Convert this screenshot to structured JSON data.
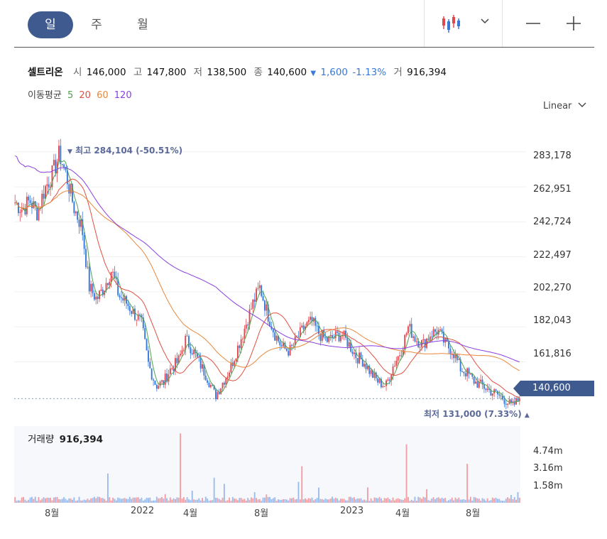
{
  "tabs": {
    "day": "일",
    "week": "주",
    "month": "월"
  },
  "stock": {
    "name": "셀트리온",
    "open_label": "시",
    "open": "146,000",
    "high_label": "고",
    "high": "147,800",
    "low_label": "저",
    "low": "138,500",
    "close_label": "종",
    "close": "140,600",
    "change": "1,600",
    "change_pct": "-1.13%",
    "volume_label": "거",
    "volume": "916,394"
  },
  "ma": {
    "label": "이동평균",
    "p5": "5",
    "p20": "20",
    "p60": "60",
    "p120": "120"
  },
  "scale": {
    "label": "Linear"
  },
  "colors": {
    "accent": "#3f5a8e",
    "up": "#e0484e",
    "down": "#3a78d8",
    "ma5": "#4fa24f",
    "ma20": "#e05040",
    "ma60": "#e8883a",
    "ma120": "#8a3fe0"
  },
  "annotations": {
    "high": "최고 284,104 (-50.51%)",
    "low": "최저 131,000 (7.33%)"
  },
  "current_price": "140,600",
  "volume_title": "거래량",
  "volume_value": "916,394",
  "chart_data": {
    "type": "candlestick",
    "title": "",
    "y_ticks": [
      "283,178",
      "262,951",
      "242,724",
      "222,497",
      "202,270",
      "182,043",
      "161,816"
    ],
    "ylim": [
      137000,
      295000
    ],
    "x_ticks": [
      "8월",
      "2022",
      "4월",
      "8월",
      "2023",
      "4월",
      "8월"
    ],
    "high": 284104,
    "low": 131000,
    "last": 140600,
    "close_series": [
      254000,
      250000,
      255000,
      248000,
      262000,
      270000,
      282000,
      268000,
      250000,
      240000,
      205000,
      198000,
      205000,
      215000,
      200000,
      196000,
      190000,
      185000,
      160000,
      148000,
      150000,
      158000,
      162000,
      175000,
      168000,
      160000,
      152000,
      142000,
      150000,
      158000,
      170000,
      182000,
      195000,
      205000,
      190000,
      178000,
      170000,
      168000,
      175000,
      182000,
      185000,
      178000,
      174000,
      176000,
      178000,
      172000,
      165000,
      162000,
      155000,
      150000,
      148000,
      160000,
      168000,
      182000,
      175000,
      172000,
      178000,
      180000,
      172000,
      168000,
      158000,
      155000,
      150000,
      148000,
      145000,
      143000,
      140000,
      136000,
      140600
    ],
    "volume_ticks": [
      "4.74m",
      "3.16m",
      "1.58m"
    ],
    "volume_max_m": 6.3
  }
}
